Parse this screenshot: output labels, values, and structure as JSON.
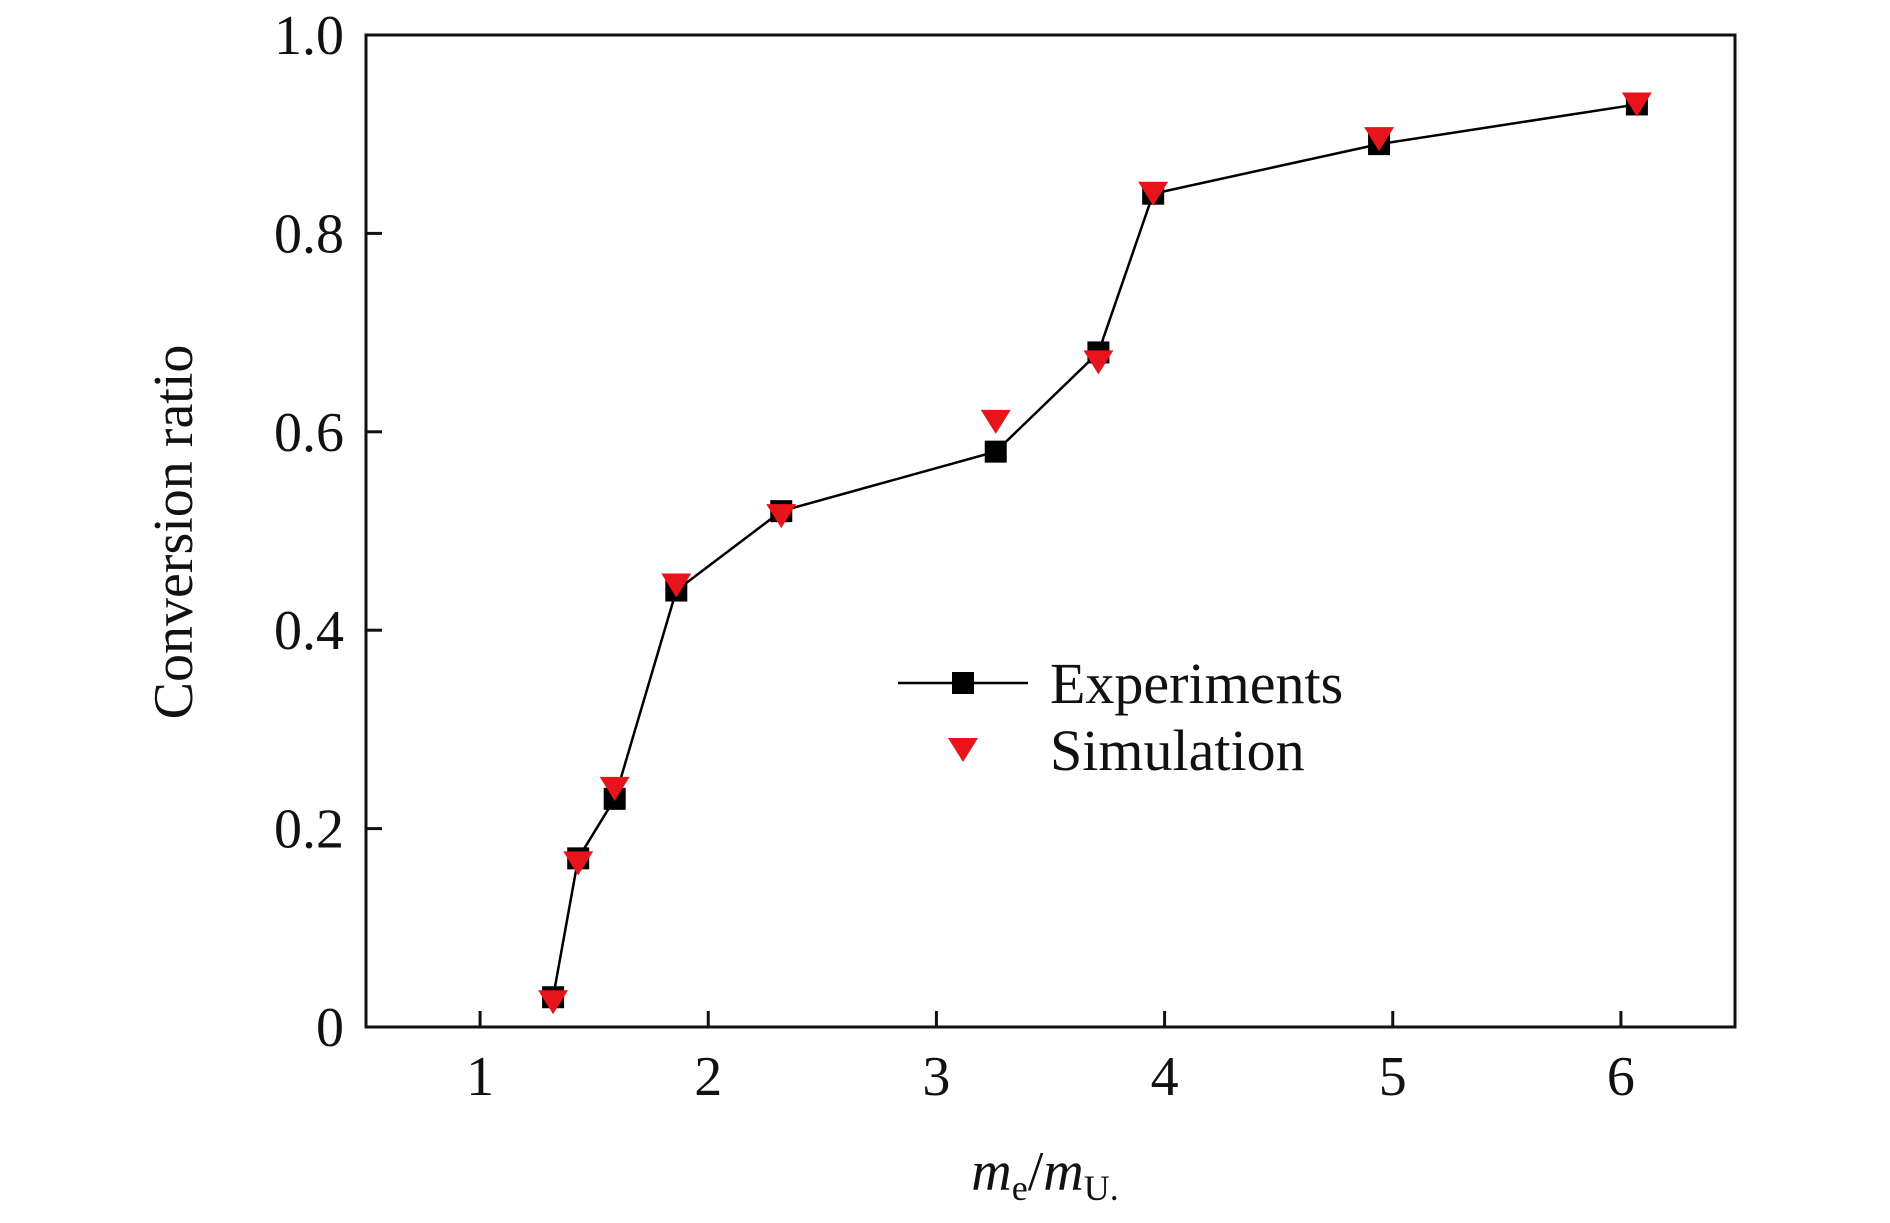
{
  "chart_data": {
    "type": "line",
    "title": "",
    "xlabel": {
      "main": "m",
      "main_sub": "e",
      "slash": "/",
      "denom": "m",
      "denom_sub": "U."
    },
    "ylabel": "Conversion ratio",
    "xlim": [
      0.5,
      6.5
    ],
    "ylim": [
      0,
      1.0
    ],
    "xticks": [
      1,
      2,
      3,
      4,
      5,
      6
    ],
    "xtick_labels": [
      "1",
      "2",
      "3",
      "4",
      "5",
      "6"
    ],
    "yticks": [
      0,
      0.2,
      0.4,
      0.6,
      0.8,
      1.0
    ],
    "ytick_labels": [
      "0",
      "0.2",
      "0.4",
      "0.6",
      "0.8",
      "1.0"
    ],
    "grid": false,
    "legend_position": "center-right",
    "series": [
      {
        "name": "Experiments",
        "marker": "square",
        "line": true,
        "color": "#000000",
        "x": [
          1.32,
          1.43,
          1.59,
          1.86,
          2.32,
          3.26,
          3.71,
          3.95,
          4.94,
          6.07
        ],
        "y": [
          0.03,
          0.17,
          0.23,
          0.44,
          0.52,
          0.58,
          0.68,
          0.84,
          0.89,
          0.93
        ]
      },
      {
        "name": "Simulation",
        "marker": "triangle-down",
        "line": false,
        "color": "#e8141c",
        "x": [
          1.32,
          1.43,
          1.59,
          1.86,
          2.32,
          3.26,
          3.71,
          3.95,
          4.94,
          6.07
        ],
        "y": [
          0.025,
          0.165,
          0.24,
          0.445,
          0.515,
          0.61,
          0.67,
          0.84,
          0.895,
          0.93
        ]
      }
    ]
  }
}
